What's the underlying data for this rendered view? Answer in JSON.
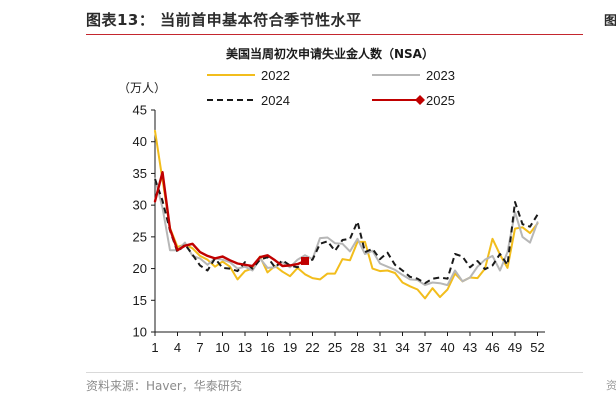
{
  "header": {
    "figure_label": "图表13：  当前首申基本符合季节性水平",
    "edge_top": "图"
  },
  "footer": {
    "source": "资料来源：Haver，华泰研究",
    "edge_bottom": "资"
  },
  "chart_data": {
    "type": "line",
    "title": "美国当周初次申请失业金人数（NSA）",
    "ylabel": "（万人）",
    "xlabel": "",
    "xlim": [
      1,
      53
    ],
    "ylim": [
      10,
      45
    ],
    "y_ticks": [
      10,
      15,
      20,
      25,
      30,
      35,
      40,
      45
    ],
    "x_ticks": [
      1,
      4,
      7,
      10,
      13,
      16,
      19,
      22,
      25,
      28,
      31,
      34,
      37,
      40,
      43,
      46,
      49,
      52
    ],
    "grid": false,
    "series": [
      {
        "name": "2022",
        "color": "#f2bd1c",
        "style": "solid",
        "values": [
          41.7,
          34.0,
          26.4,
          23.4,
          23.8,
          23.2,
          22.0,
          21.4,
          20.3,
          21.1,
          20.3,
          18.3,
          19.6,
          20.0,
          21.9,
          19.4,
          20.4,
          19.5,
          18.8,
          20.1,
          19.1,
          18.5,
          18.3,
          19.2,
          19.2,
          21.5,
          21.3,
          24.2,
          24.2,
          20.0,
          19.6,
          19.7,
          19.3,
          17.8,
          17.2,
          16.7,
          15.3,
          16.9,
          15.5,
          16.7,
          19.2,
          18.0,
          18.6,
          18.5,
          20.0,
          24.7,
          22.2,
          20.1,
          26.3,
          26.5,
          25.6,
          27.1
        ]
      },
      {
        "name": "2023",
        "color": "#b7b7b7",
        "style": "solid",
        "values": [
          34.2,
          29.6,
          22.9,
          22.9,
          24.1,
          22.0,
          21.6,
          20.6,
          21.6,
          21.4,
          21.0,
          20.0,
          20.3,
          19.7,
          21.6,
          20.1,
          20.2,
          21.0,
          20.2,
          21.4,
          22.1,
          21.5,
          24.8,
          24.9,
          24.0,
          23.9,
          22.7,
          24.7,
          22.3,
          22.8,
          20.8,
          20.3,
          19.8,
          19.0,
          18.3,
          18.2,
          17.4,
          17.8,
          17.7,
          17.4,
          19.7,
          18.0,
          18.6,
          20.3,
          21.4,
          22.0,
          19.7,
          22.6,
          28.9,
          25.0,
          24.1,
          27.3
        ]
      },
      {
        "name": "2024",
        "color": "#1a1a1a",
        "style": "dashed",
        "values": [
          34.1,
          30.7,
          26.0,
          22.6,
          23.8,
          22.2,
          20.5,
          19.7,
          21.6,
          20.1,
          20.0,
          19.6,
          21.0,
          20.0,
          21.4,
          21.8,
          20.2,
          21.3,
          20.5,
          20.2,
          21.0,
          21.4,
          23.9,
          24.3,
          22.8,
          24.5,
          24.7,
          27.4,
          22.6,
          23.1,
          21.5,
          22.5,
          20.6,
          19.7,
          18.7,
          18.4,
          17.7,
          18.4,
          18.6,
          18.4,
          22.3,
          21.9,
          20.2,
          21.2,
          19.9,
          20.5,
          22.3,
          20.6,
          30.5,
          27.0,
          26.6,
          28.5
        ]
      },
      {
        "name": "2025",
        "color": "#c00000",
        "style": "solid",
        "marker": "diamond",
        "values": [
          30.6,
          35.2,
          26.2,
          22.9,
          23.6,
          23.9,
          22.6,
          22.0,
          21.6,
          21.9,
          21.3,
          20.8,
          20.6,
          20.4,
          21.8,
          22.1,
          21.3,
          20.4,
          20.5,
          20.7,
          21.2
        ]
      }
    ],
    "legend": {
      "placement": "top",
      "columns": 2
    }
  }
}
